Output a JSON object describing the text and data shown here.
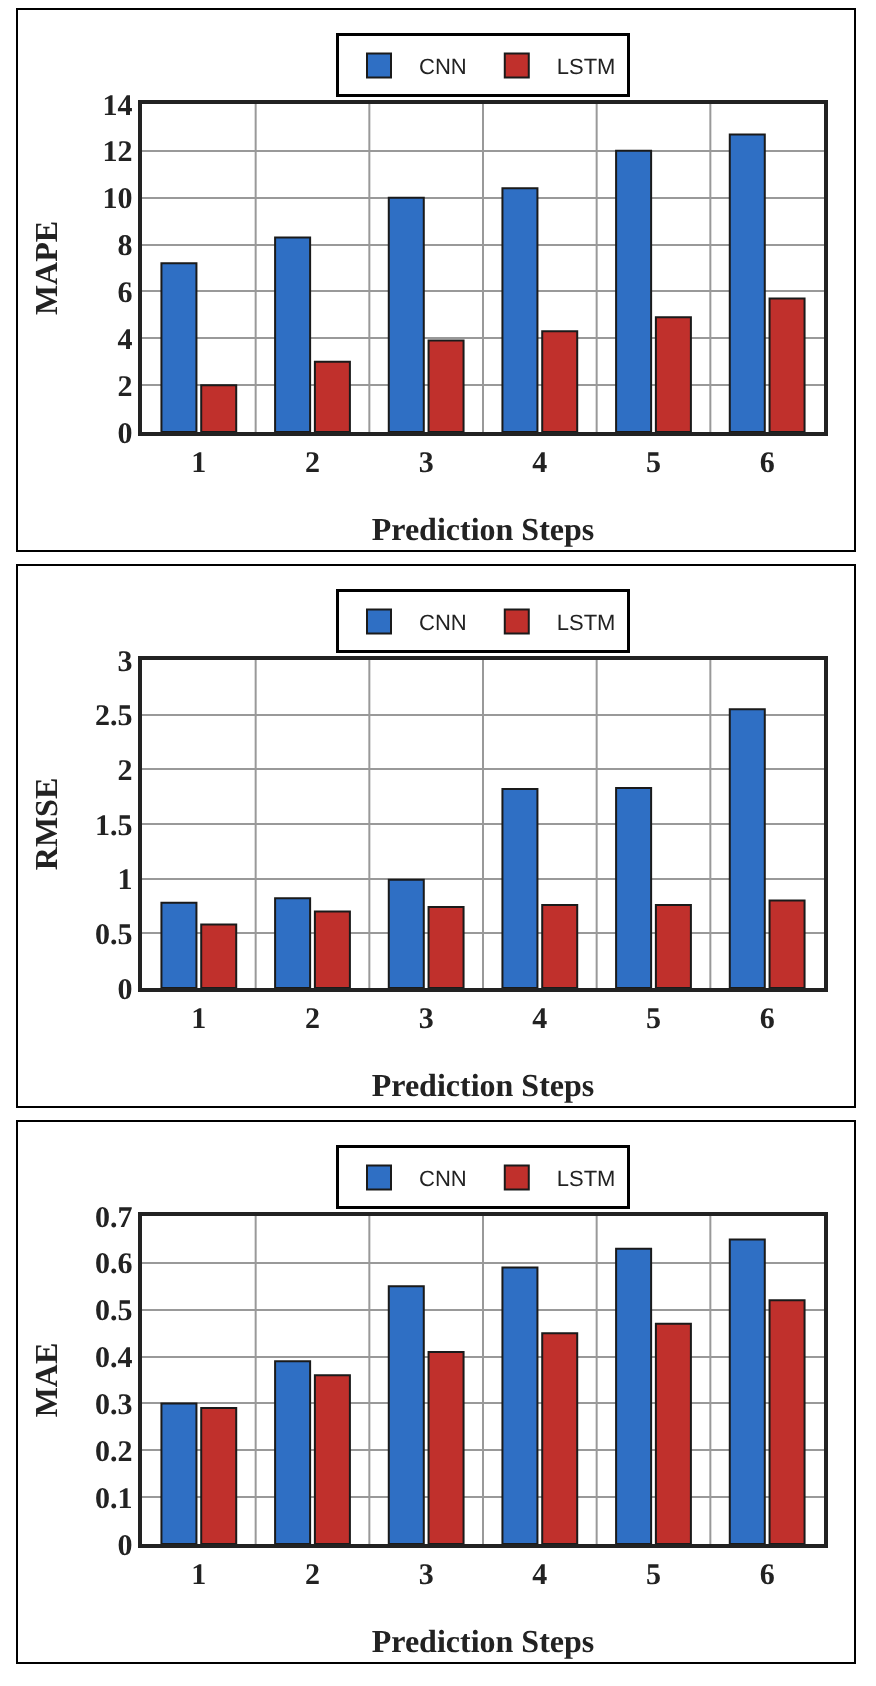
{
  "chart_data": [
    {
      "type": "bar",
      "xlabel": "Prediction Steps",
      "ylabel": "MAPE",
      "categories": [
        "1",
        "2",
        "3",
        "4",
        "5",
        "6"
      ],
      "series": [
        {
          "name": "CNN",
          "color": "#2f6fc4",
          "values": [
            7.2,
            8.3,
            10.0,
            10.4,
            12.0,
            12.7
          ]
        },
        {
          "name": "LSTM",
          "color": "#c0302c",
          "values": [
            2.0,
            3.0,
            3.9,
            4.3,
            4.9,
            5.7
          ]
        }
      ],
      "ylim": [
        0,
        14
      ],
      "yticks": [
        0,
        2,
        4,
        6,
        8,
        10,
        12,
        14
      ],
      "grid": true,
      "legend": "top"
    },
    {
      "type": "bar",
      "xlabel": "Prediction Steps",
      "ylabel": "RMSE",
      "categories": [
        "1",
        "2",
        "3",
        "4",
        "5",
        "6"
      ],
      "series": [
        {
          "name": "CNN",
          "color": "#2f6fc4",
          "values": [
            0.78,
            0.82,
            0.99,
            1.82,
            1.83,
            2.55
          ]
        },
        {
          "name": "LSTM",
          "color": "#c0302c",
          "values": [
            0.58,
            0.7,
            0.74,
            0.76,
            0.76,
            0.8
          ]
        }
      ],
      "ylim": [
        0,
        3
      ],
      "yticks": [
        0,
        0.5,
        1,
        1.5,
        2,
        2.5,
        3
      ],
      "grid": true,
      "legend": "top"
    },
    {
      "type": "bar",
      "xlabel": "Prediction Steps",
      "ylabel": "MAE",
      "categories": [
        "1",
        "2",
        "3",
        "4",
        "5",
        "6"
      ],
      "series": [
        {
          "name": "CNN",
          "color": "#2f6fc4",
          "values": [
            0.3,
            0.39,
            0.55,
            0.59,
            0.63,
            0.65
          ]
        },
        {
          "name": "LSTM",
          "color": "#c0302c",
          "values": [
            0.29,
            0.36,
            0.41,
            0.45,
            0.47,
            0.52
          ]
        }
      ],
      "ylim": [
        0,
        0.7
      ],
      "yticks": [
        0,
        0.1,
        0.2,
        0.3,
        0.4,
        0.5,
        0.6,
        0.7
      ],
      "grid": true,
      "legend": "top"
    }
  ]
}
